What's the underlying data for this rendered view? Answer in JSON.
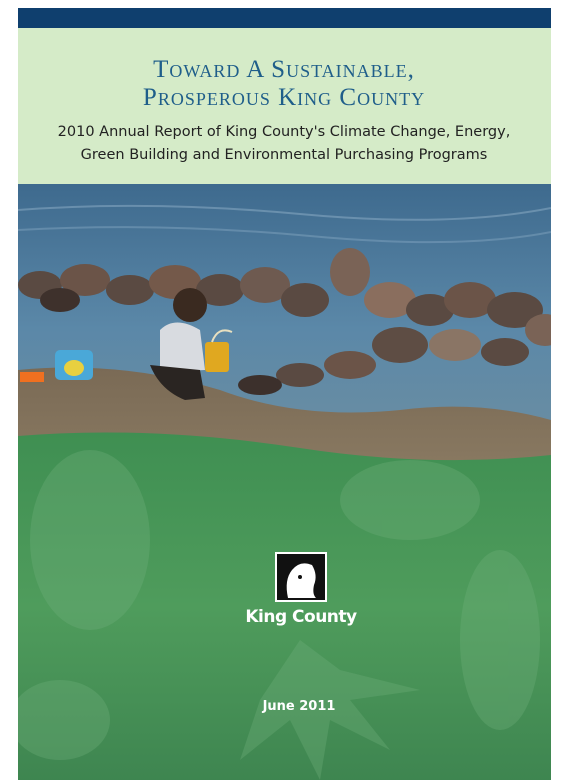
{
  "header": {
    "title_lines": [
      "Toward A Sustainable,",
      "Prosperous King County"
    ],
    "subtitle_lines": [
      "2010 Annual Report of King County's Climate Change, Energy,",
      "Green Building and Environmental Purchasing Programs"
    ]
  },
  "logo": {
    "label": "King County"
  },
  "footer": {
    "date": "June 2011"
  }
}
